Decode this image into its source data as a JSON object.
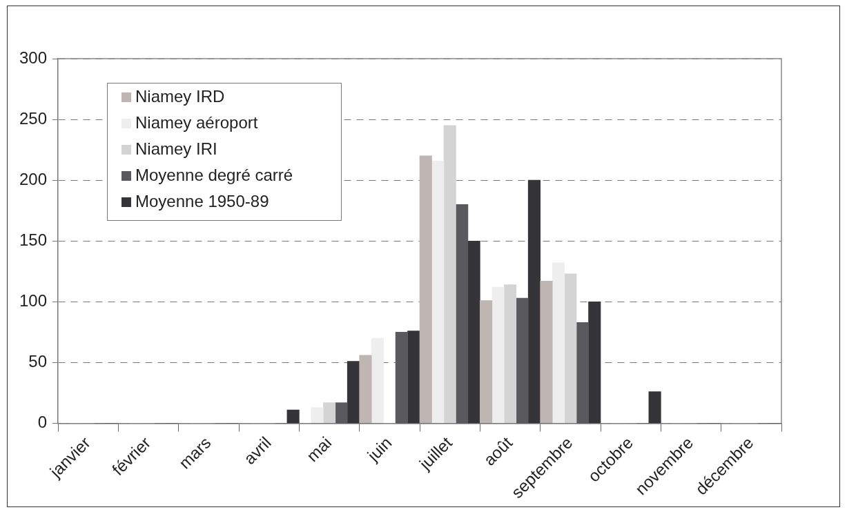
{
  "chart_data": {
    "type": "bar",
    "categories": [
      "janvier",
      "février",
      "mars",
      "avril",
      "mai",
      "juin",
      "juillet",
      "août",
      "septembre",
      "octobre",
      "novembre",
      "décembre"
    ],
    "series": [
      {
        "name": "Niamey IRD",
        "color": "#bfb5b3",
        "values": [
          0,
          0,
          0,
          0,
          0,
          56,
          220,
          101,
          117,
          0,
          0,
          0
        ]
      },
      {
        "name": "Niamey aéroport",
        "color": "#eeeeee",
        "values": [
          0,
          0,
          0,
          0,
          13,
          70,
          216,
          112,
          132,
          0,
          0,
          0
        ]
      },
      {
        "name": "Niamey IRI",
        "color": "#d4d4d4",
        "values": [
          0,
          0,
          0,
          0,
          17,
          0,
          245,
          114,
          123,
          0,
          0,
          0
        ]
      },
      {
        "name": "Moyenne degré carré",
        "color": "#5a5a5e",
        "values": [
          0,
          0,
          0,
          0,
          17,
          75,
          180,
          103,
          83,
          0,
          0,
          0
        ]
      },
      {
        "name": "Moyenne 1950-89",
        "color": "#353438",
        "values": [
          0,
          0,
          0,
          11,
          51,
          76,
          150,
          200,
          100,
          26,
          0,
          0
        ]
      }
    ],
    "ylim": [
      0,
      300
    ],
    "yticks": [
      0,
      50,
      100,
      150,
      200,
      250,
      300
    ],
    "grid": "y",
    "legend": "top left"
  }
}
